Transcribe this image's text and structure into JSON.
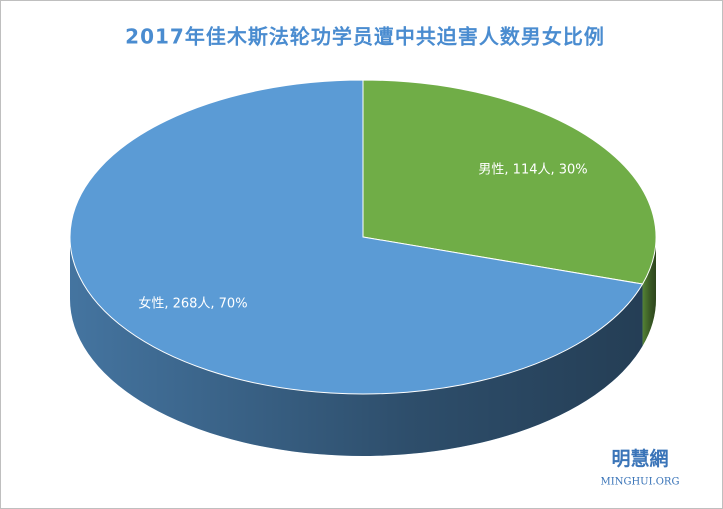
{
  "chart_data": {
    "type": "pie",
    "title": "2017年佳木斯法轮功学员遭中共迫害人数男女比例",
    "categories": [
      "男性",
      "女性"
    ],
    "values": [
      114,
      268
    ],
    "value_labels": [
      "男性, 114人, 30%",
      "女性, 268人, 70%"
    ],
    "colors": [
      "#70ad47",
      "#5b9bd5"
    ]
  },
  "watermark": {
    "name": "明慧網",
    "site": "MINGHUI.ORG"
  }
}
